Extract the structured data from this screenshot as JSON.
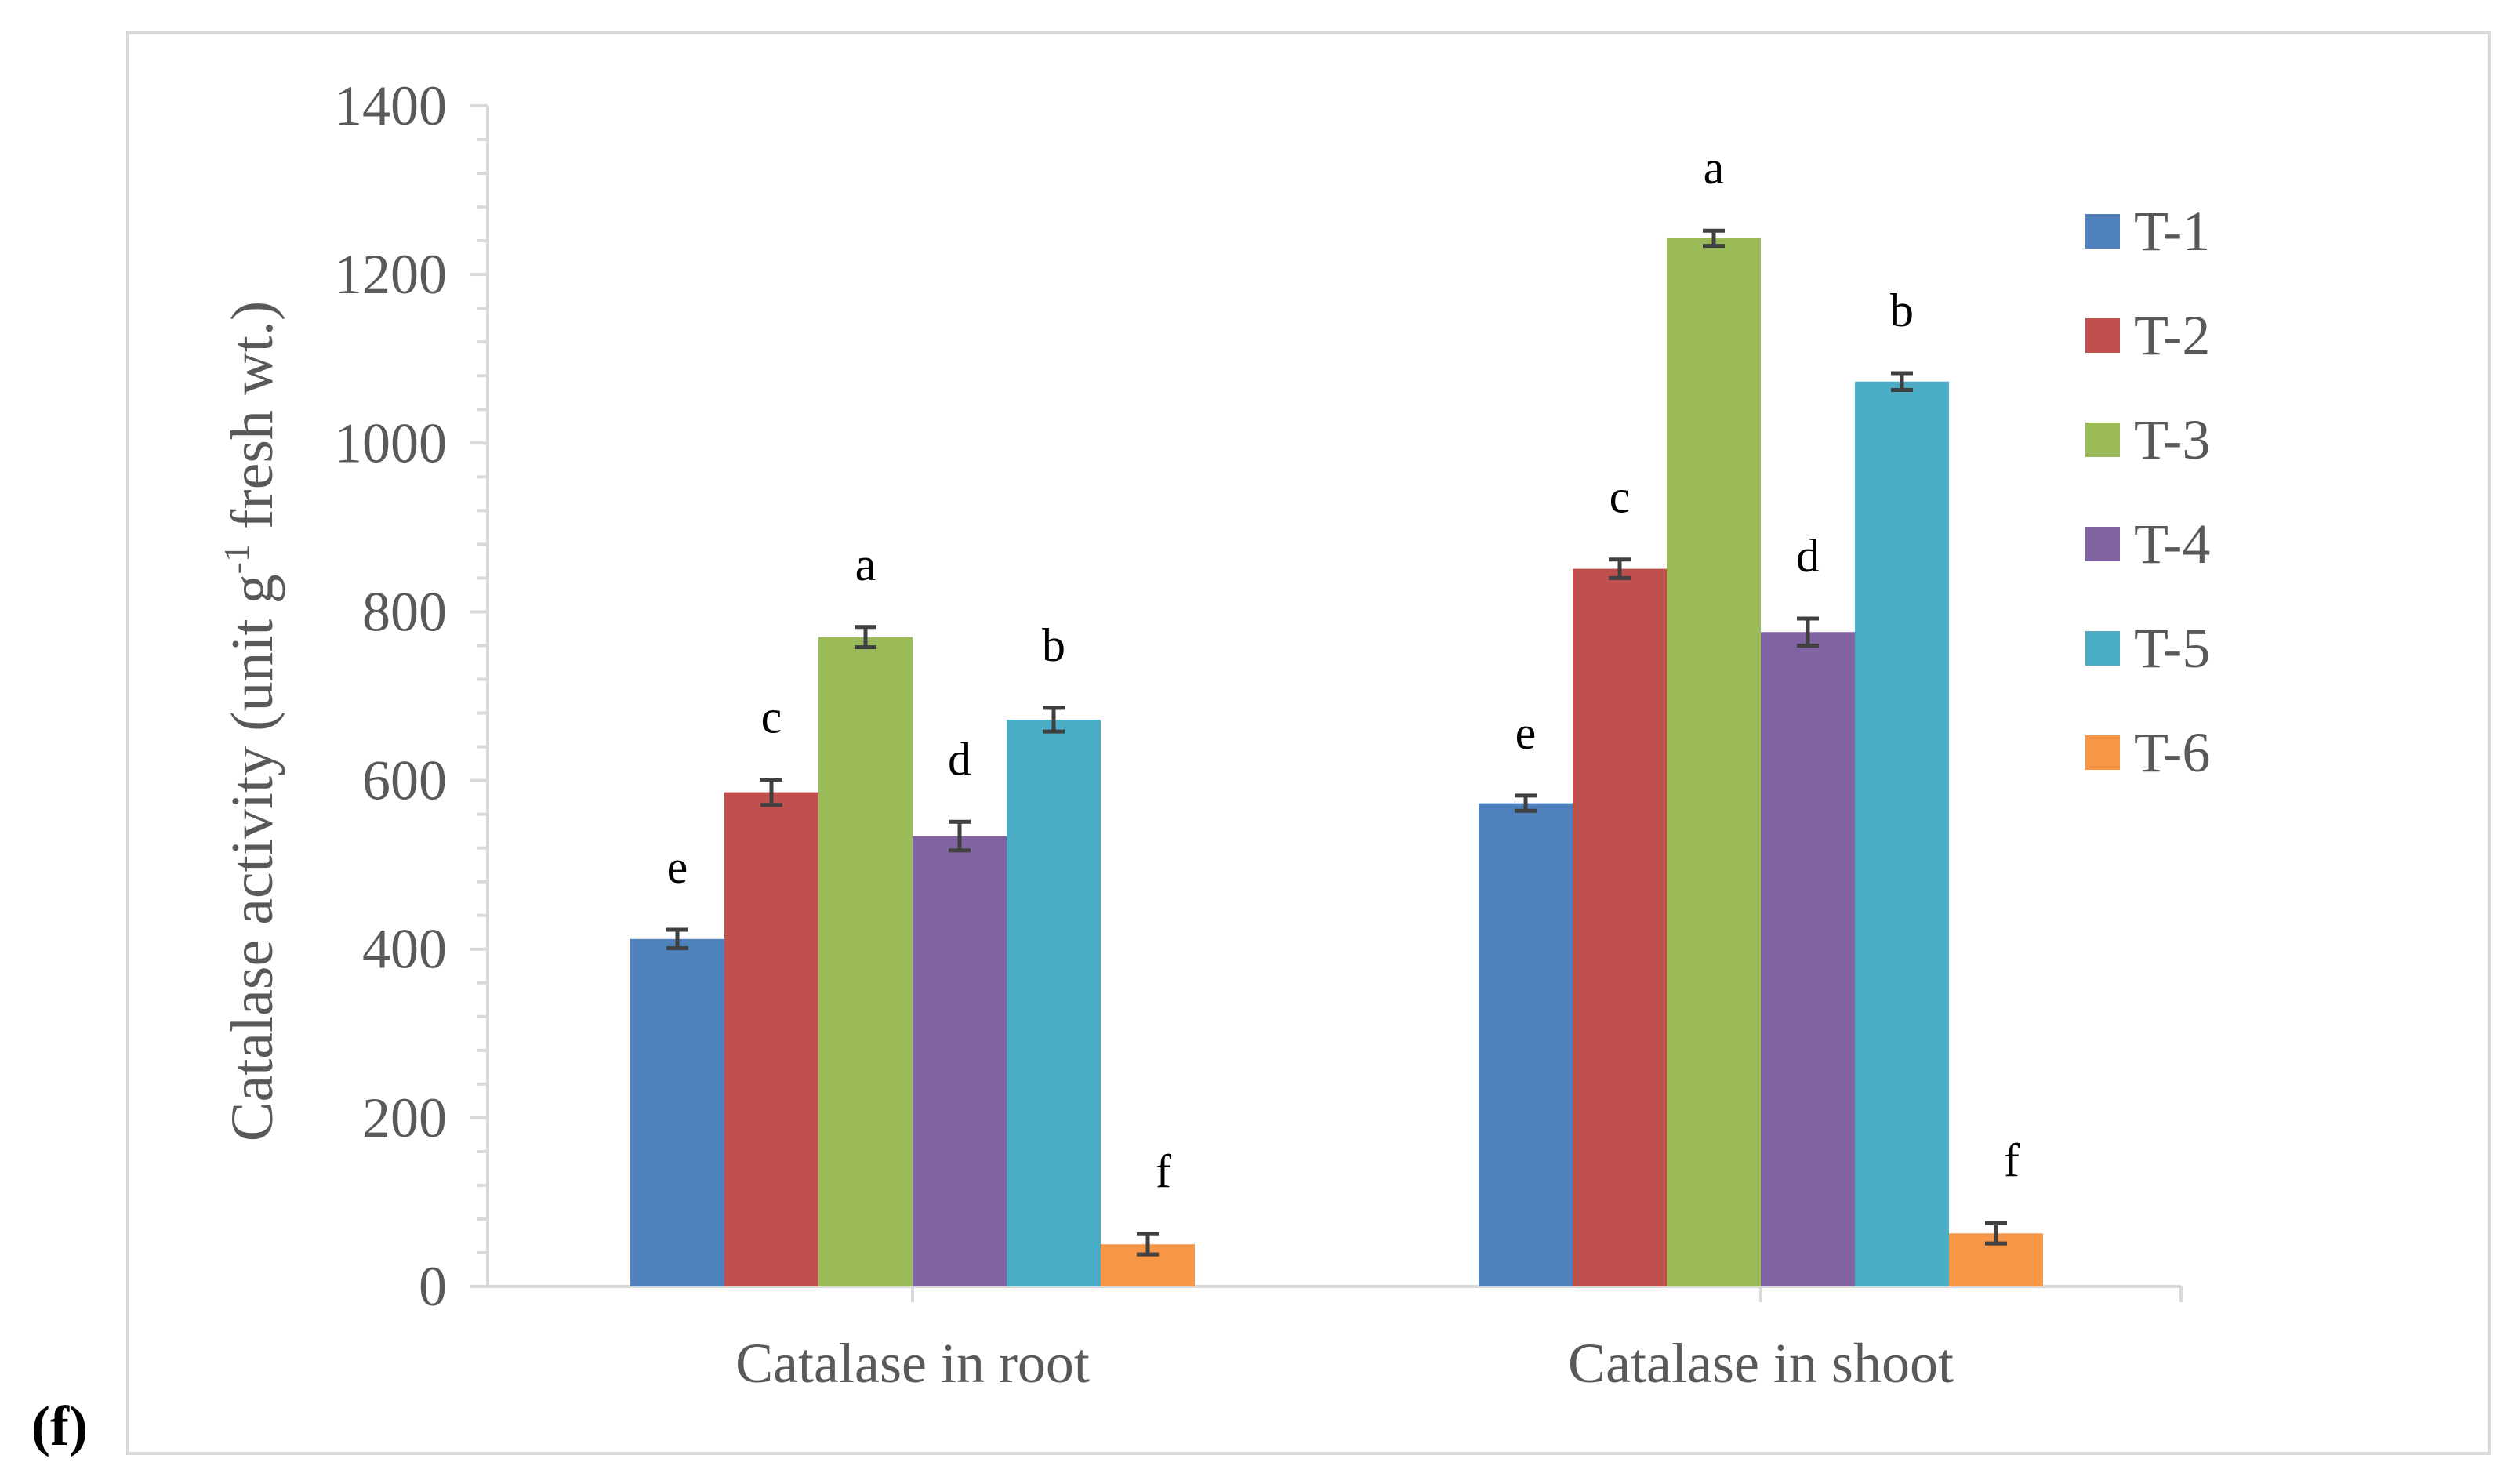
{
  "panel_label": "(f)",
  "chart_data": {
    "type": "bar",
    "title": "",
    "xlabel": "",
    "ylabel_main": "Catalase activity (unit g",
    "ylabel_sup": "-1",
    "ylabel_tail": " fresh wt.)",
    "ylim": [
      0,
      1400
    ],
    "ytick_step": 200,
    "ytick_labels": [
      "0",
      "200",
      "400",
      "600",
      "800",
      "1000",
      "1200",
      "1400"
    ],
    "grid": false,
    "legend_position": "right",
    "categories": [
      "Catalase in root",
      "Catalase in shoot"
    ],
    "series": [
      {
        "name": "T-1",
        "color": "#4F81BD",
        "values": [
          412,
          573
        ],
        "errors": [
          11,
          9
        ],
        "letters": [
          "e",
          "e"
        ]
      },
      {
        "name": "T-2",
        "color": "#C0504D",
        "values": [
          586,
          851
        ],
        "errors": [
          15,
          11
        ],
        "letters": [
          "c",
          "c"
        ]
      },
      {
        "name": "T-3",
        "color": "#9BBB59",
        "values": [
          770,
          1243
        ],
        "errors": [
          12,
          9
        ],
        "letters": [
          "a",
          "a"
        ]
      },
      {
        "name": "T-4",
        "color": "#8064A2",
        "values": [
          534,
          776
        ],
        "errors": [
          17,
          16
        ],
        "letters": [
          "d",
          "d"
        ]
      },
      {
        "name": "T-5",
        "color": "#4BACC6",
        "values": [
          672,
          1073
        ],
        "errors": [
          14,
          10
        ],
        "letters": [
          "b",
          "b"
        ]
      },
      {
        "name": "T-6",
        "color": "#F79646",
        "values": [
          50,
          63
        ],
        "errors": [
          12,
          12
        ],
        "letters": [
          "f",
          "f"
        ]
      }
    ],
    "colors": {
      "axis": "#D9D9D9",
      "text": "#595959",
      "error_bar": "#404040",
      "frame": "#D9D9D9"
    }
  }
}
